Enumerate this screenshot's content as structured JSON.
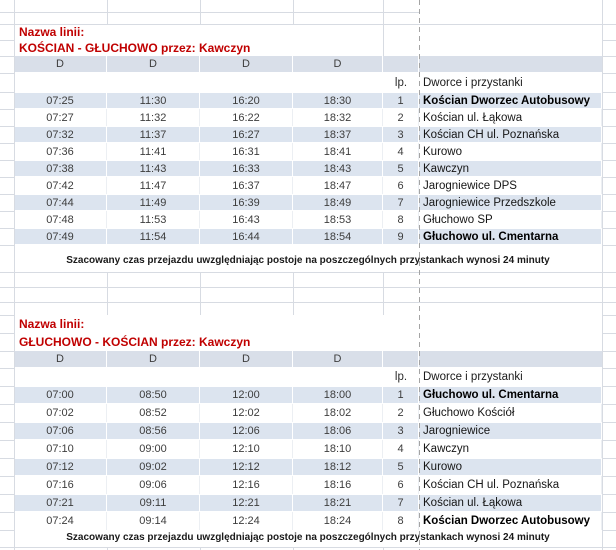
{
  "colors": {
    "title_red": "#C00000",
    "band": "#DCE4EF",
    "header_band": "#D9DFE9"
  },
  "tables": [
    {
      "label": "Nazwa linii:",
      "route": "KOŚCIAN - GŁUCHOWO przez: Kawczyn",
      "day_codes": [
        "D",
        "D",
        "D",
        "D"
      ],
      "lp_header": "lp.",
      "stops_header": "Dworce i przystanki",
      "rows": [
        {
          "times": [
            "07:25",
            "11:30",
            "16:20",
            "18:30"
          ],
          "lp": "1",
          "stop": "Kościan Dworzec Autobusowy",
          "bold": true
        },
        {
          "times": [
            "07:27",
            "11:32",
            "16:22",
            "18:32"
          ],
          "lp": "2",
          "stop": "Kościan ul. Łąkowa",
          "bold": false
        },
        {
          "times": [
            "07:32",
            "11:37",
            "16:27",
            "18:37"
          ],
          "lp": "3",
          "stop": "Kościan CH ul. Poznańska",
          "bold": false
        },
        {
          "times": [
            "07:36",
            "11:41",
            "16:31",
            "18:41"
          ],
          "lp": "4",
          "stop": "Kurowo",
          "bold": false
        },
        {
          "times": [
            "07:38",
            "11:43",
            "16:33",
            "18:43"
          ],
          "lp": "5",
          "stop": "Kawczyn",
          "bold": false
        },
        {
          "times": [
            "07:42",
            "11:47",
            "16:37",
            "18:47"
          ],
          "lp": "6",
          "stop": "Jarogniewice DPS",
          "bold": false
        },
        {
          "times": [
            "07:44",
            "11:49",
            "16:39",
            "18:49"
          ],
          "lp": "7",
          "stop": "Jarogniewice Przedszkole",
          "bold": false
        },
        {
          "times": [
            "07:48",
            "11:53",
            "16:43",
            "18:53"
          ],
          "lp": "8",
          "stop": "Głuchowo SP",
          "bold": false
        },
        {
          "times": [
            "07:49",
            "11:54",
            "16:44",
            "18:54"
          ],
          "lp": "9",
          "stop": "Głuchowo ul. Cmentarna",
          "bold": true
        }
      ],
      "footer": "Szacowany czas przejazdu uwzględniając postoje na poszczególnych przystankach wynosi 24 minuty"
    },
    {
      "label": "Nazwa linii:",
      "route": "GŁUCHOWO - KOŚCIAN przez: Kawczyn",
      "day_codes": [
        "D",
        "D",
        "D",
        "D"
      ],
      "lp_header": "lp.",
      "stops_header": "Dworce i przystanki",
      "rows": [
        {
          "times": [
            "07:00",
            "08:50",
            "12:00",
            "18:00"
          ],
          "lp": "1",
          "stop": "Głuchowo ul. Cmentarna",
          "bold": true
        },
        {
          "times": [
            "07:02",
            "08:52",
            "12:02",
            "18:02"
          ],
          "lp": "2",
          "stop": "Głuchowo Kościół",
          "bold": false
        },
        {
          "times": [
            "07:06",
            "08:56",
            "12:06",
            "18:06"
          ],
          "lp": "3",
          "stop": "Jarogniewice",
          "bold": false
        },
        {
          "times": [
            "07:10",
            "09:00",
            "12:10",
            "18:10"
          ],
          "lp": "4",
          "stop": "Kawczyn",
          "bold": false
        },
        {
          "times": [
            "07:12",
            "09:02",
            "12:12",
            "18:12"
          ],
          "lp": "5",
          "stop": "Kurowo",
          "bold": false
        },
        {
          "times": [
            "07:16",
            "09:06",
            "12:16",
            "18:16"
          ],
          "lp": "6",
          "stop": "Kościan CH ul. Poznańska",
          "bold": false
        },
        {
          "times": [
            "07:21",
            "09:11",
            "12:21",
            "18:21"
          ],
          "lp": "7",
          "stop": "Kościan ul. Łąkowa",
          "bold": false
        },
        {
          "times": [
            "07:24",
            "09:14",
            "12:24",
            "18:24"
          ],
          "lp": "8",
          "stop": "Kościan Dworzec Autobusowy",
          "bold": true
        }
      ],
      "footer": "Szacowany czas przejazdu uwzględniając postoje na poszczególnych przystankach wynosi 24 minuty"
    }
  ]
}
